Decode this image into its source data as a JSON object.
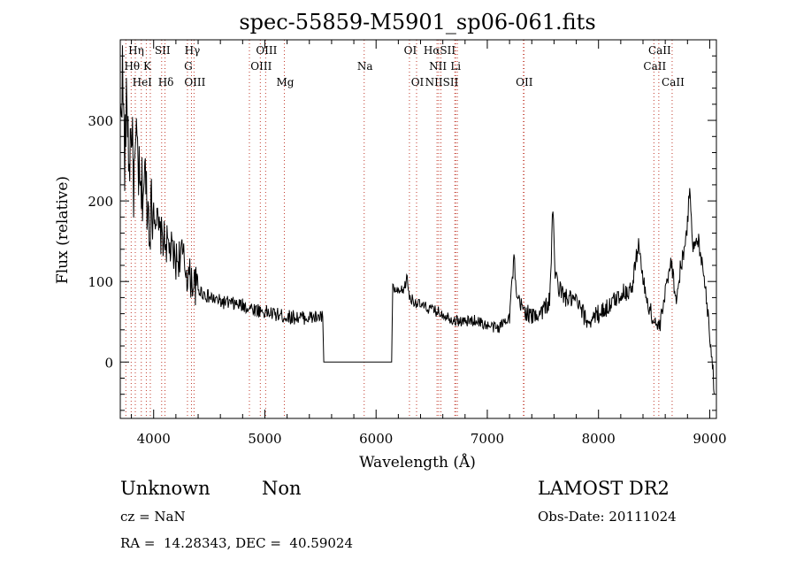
{
  "chart_data": {
    "type": "line",
    "title": "spec-55859-M5901_sp06-061.fits",
    "xlabel": "Wavelength (Å)",
    "ylabel": "Flux (relative)",
    "xlim": [
      3700,
      9060
    ],
    "ylim": [
      -70,
      400
    ],
    "xticks": [
      4000,
      5000,
      6000,
      7000,
      8000,
      9000
    ],
    "yticks": [
      0,
      100,
      200,
      300
    ],
    "grid": false,
    "line_color": "#000000",
    "marker_color": "#c0392b",
    "spectrum_anchors": [
      [
        3700,
        300
      ],
      [
        3720,
        360
      ],
      [
        3740,
        250
      ],
      [
        3760,
        330
      ],
      [
        3780,
        240
      ],
      [
        3800,
        300
      ],
      [
        3820,
        220
      ],
      [
        3850,
        270
      ],
      [
        3880,
        200
      ],
      [
        3920,
        230
      ],
      [
        3960,
        180
      ],
      [
        4000,
        195
      ],
      [
        4050,
        160
      ],
      [
        4100,
        150
      ],
      [
        4150,
        140
      ],
      [
        4200,
        125
      ],
      [
        4250,
        135
      ],
      [
        4300,
        110
      ],
      [
        4350,
        100
      ],
      [
        4400,
        90
      ],
      [
        4500,
        80
      ],
      [
        4600,
        75
      ],
      [
        4800,
        70
      ],
      [
        5000,
        62
      ],
      [
        5200,
        56
      ],
      [
        5400,
        55
      ],
      [
        5520,
        56
      ],
      [
        5530,
        0
      ],
      [
        6140,
        0
      ],
      [
        6150,
        92
      ],
      [
        6200,
        85
      ],
      [
        6250,
        90
      ],
      [
        6280,
        105
      ],
      [
        6300,
        80
      ],
      [
        6400,
        70
      ],
      [
        6500,
        65
      ],
      [
        6600,
        60
      ],
      [
        6700,
        52
      ],
      [
        6800,
        50
      ],
      [
        6900,
        52
      ],
      [
        7000,
        45
      ],
      [
        7100,
        42
      ],
      [
        7200,
        58
      ],
      [
        7240,
        130
      ],
      [
        7260,
        80
      ],
      [
        7300,
        70
      ],
      [
        7400,
        55
      ],
      [
        7500,
        65
      ],
      [
        7560,
        75
      ],
      [
        7590,
        190
      ],
      [
        7610,
        110
      ],
      [
        7650,
        90
      ],
      [
        7700,
        80
      ],
      [
        7800,
        75
      ],
      [
        7900,
        50
      ],
      [
        8000,
        60
      ],
      [
        8100,
        70
      ],
      [
        8200,
        85
      ],
      [
        8300,
        90
      ],
      [
        8360,
        150
      ],
      [
        8400,
        100
      ],
      [
        8450,
        70
      ],
      [
        8500,
        50
      ],
      [
        8550,
        42
      ],
      [
        8600,
        85
      ],
      [
        8650,
        130
      ],
      [
        8700,
        75
      ],
      [
        8740,
        120
      ],
      [
        8780,
        145
      ],
      [
        8800,
        170
      ],
      [
        8820,
        225
      ],
      [
        8850,
        140
      ],
      [
        8900,
        150
      ],
      [
        8950,
        110
      ],
      [
        8980,
        65
      ],
      [
        9000,
        35
      ],
      [
        9020,
        10
      ],
      [
        9040,
        -40
      ]
    ],
    "lines": [
      {
        "name": "Hη",
        "x": 3835,
        "row": 0
      },
      {
        "name": "SII",
        "x": 4072,
        "row": 0
      },
      {
        "name": "Hγ",
        "x": 4340,
        "row": 0
      },
      {
        "name": "OIII",
        "x": 5007,
        "row": 0
      },
      {
        "name": "OI",
        "x": 6300,
        "row": 0
      },
      {
        "name": "HαSII",
        "x": 6563,
        "row": 0
      },
      {
        "name": "CaII",
        "x": 8542,
        "row": 0
      },
      {
        "name": "Hθ",
        "x": 3798,
        "row": 1
      },
      {
        "name": "K",
        "x": 3934,
        "row": 1
      },
      {
        "name": "G",
        "x": 4304,
        "row": 1
      },
      {
        "name": "OIII",
        "x": 4959,
        "row": 1
      },
      {
        "name": "Na",
        "x": 5893,
        "row": 1
      },
      {
        "name": "NII",
        "x": 6548,
        "row": 1
      },
      {
        "name": "Li",
        "x": 6708,
        "row": 1
      },
      {
        "name": "CaII",
        "x": 8498,
        "row": 1
      },
      {
        "name": "HeI",
        "x": 3889,
        "row": 2
      },
      {
        "name": "Hδ",
        "x": 4102,
        "row": 2
      },
      {
        "name": "OIII",
        "x": 4363,
        "row": 2
      },
      {
        "name": "Mg",
        "x": 5175,
        "row": 2
      },
      {
        "name": "OI",
        "x": 6364,
        "row": 2
      },
      {
        "name": "NIISII",
        "x": 6583,
        "row": 2
      },
      {
        "name": "OII",
        "x": 7325,
        "row": 2
      },
      {
        "name": "CaII",
        "x": 8662,
        "row": 2
      }
    ],
    "extra_markers": [
      3750,
      3970,
      4861,
      6716,
      6731,
      7330
    ]
  },
  "info": {
    "class": "Unknown",
    "subclass": "Non",
    "survey": "LAMOST DR2",
    "cz": "cz = NaN",
    "obs_date": "Obs-Date: 20111024",
    "coords": "RA =  14.28343, DEC =  40.59024"
  }
}
